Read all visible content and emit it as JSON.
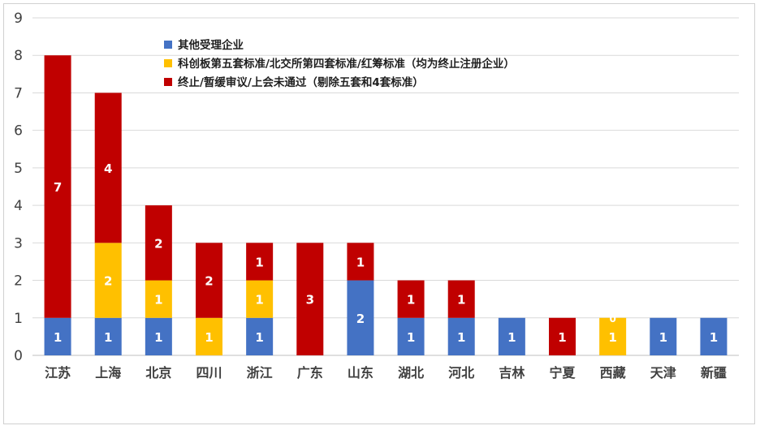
{
  "chart_data": {
    "type": "bar",
    "stacked": true,
    "categories": [
      "江苏",
      "上海",
      "北京",
      "四川",
      "浙江",
      "广东",
      "山东",
      "湖北",
      "河北",
      "吉林",
      "宁夏",
      "西藏",
      "天津",
      "新疆"
    ],
    "series": [
      {
        "name": "其他受理企业",
        "color": "#4472C4",
        "values": [
          1,
          1,
          1,
          0,
          1,
          0,
          2,
          1,
          1,
          1,
          0,
          0,
          1,
          1
        ]
      },
      {
        "name": "科创板第五套标准/北交所第四套标准/红筹标准（均为终止注册企业）",
        "color": "#FFC000",
        "values": [
          0,
          2,
          1,
          1,
          1,
          0,
          0,
          0,
          0,
          0,
          0,
          1,
          0,
          0
        ]
      },
      {
        "name": "终止/暂缓审议/上会未通过（剔除五套和4套标准）",
        "color": "#C00000",
        "values": [
          7,
          4,
          2,
          2,
          1,
          3,
          1,
          1,
          1,
          0,
          1,
          0,
          0,
          0
        ]
      }
    ],
    "ylim": [
      0,
      9
    ],
    "yticks": [
      0,
      1,
      2,
      3,
      4,
      5,
      6,
      7,
      8,
      9
    ],
    "grid": true,
    "legend_position": "top-left",
    "extra_labels": [
      {
        "category": "西藏",
        "text": "0"
      }
    ]
  }
}
